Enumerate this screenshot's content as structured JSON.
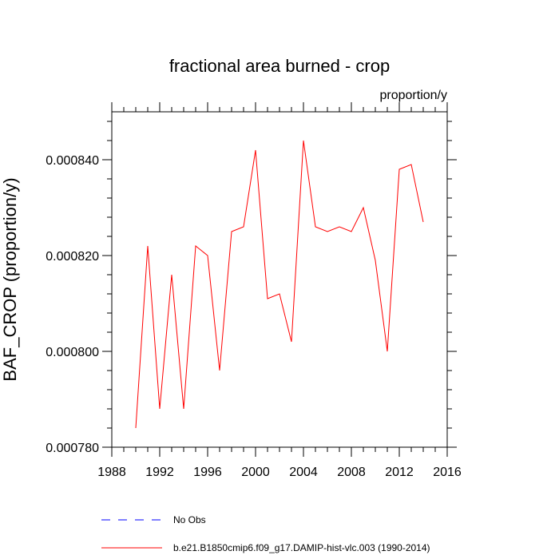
{
  "chart_data": {
    "type": "line",
    "title": "fractional area burned - crop",
    "units": "proportion/y",
    "xlabel": "",
    "ylabel": "BAF_CROP  (proportion/y)",
    "xlim": [
      1988,
      2016
    ],
    "ylim": [
      0.00078,
      0.00085
    ],
    "x_ticks": [
      {
        "value": 1988,
        "label": "1988"
      },
      {
        "value": 1992,
        "label": "1992"
      },
      {
        "value": 1996,
        "label": "1996"
      },
      {
        "value": 2000,
        "label": "2000"
      },
      {
        "value": 2004,
        "label": "2004"
      },
      {
        "value": 2008,
        "label": "2008"
      },
      {
        "value": 2012,
        "label": "2012"
      },
      {
        "value": 2016,
        "label": "2016"
      }
    ],
    "y_ticks": [
      {
        "value": 0.00078,
        "label": "0.000780"
      },
      {
        "value": 0.0008,
        "label": "0.000800"
      },
      {
        "value": 0.00082,
        "label": "0.000820"
      },
      {
        "value": 0.00084,
        "label": "0.000840"
      }
    ],
    "grid": false,
    "series": [
      {
        "name": "b.e21.B1850cmip6.f09_g17.DAMIP-hist-vlc.003 (1990-2014)",
        "color": "#ff0000",
        "x": [
          1990,
          1991,
          1992,
          1993,
          1994,
          1995,
          1996,
          1997,
          1998,
          1999,
          2000,
          2001,
          2002,
          2003,
          2004,
          2005,
          2006,
          2007,
          2008,
          2009,
          2010,
          2011,
          2012,
          2013,
          2014
        ],
        "values": [
          0.000784,
          0.000822,
          0.000788,
          0.000816,
          0.000788,
          0.000822,
          0.00082,
          0.000796,
          0.000825,
          0.000826,
          0.000842,
          0.000811,
          0.000812,
          0.000802,
          0.000844,
          0.000826,
          0.000825,
          0.000826,
          0.000825,
          0.00083,
          0.000819,
          0.0008,
          0.000838,
          0.000839,
          0.000827
        ]
      }
    ],
    "legend": [
      {
        "label": "No Obs",
        "color": "#0000ff",
        "style": "dashed"
      },
      {
        "label": "b.e21.B1850cmip6.f09_g17.DAMIP-hist-vlc.003 (1990-2014)",
        "color": "#ff0000",
        "style": "solid"
      }
    ],
    "legend_position": "bottom"
  }
}
